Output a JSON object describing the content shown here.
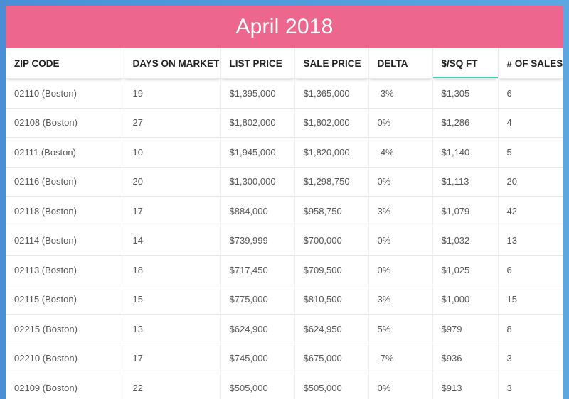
{
  "title": "April 2018",
  "colors": {
    "header_bg": "#ec668d",
    "sort_indicator": "#3cd3b5",
    "page_bg": "#4a8fd6"
  },
  "columns": [
    "ZIP CODE",
    "DAYS ON MARKET",
    "LIST PRICE",
    "SALE PRICE",
    "DELTA",
    "$/SQ FT",
    "# OF SALES"
  ],
  "sorted_column": "$/SQ FT",
  "rows": [
    [
      "02110 (Boston)",
      "19",
      "$1,395,000",
      "$1,365,000",
      "-3%",
      "$1,305",
      "6"
    ],
    [
      "02108 (Boston)",
      "27",
      "$1,802,000",
      "$1,802,000",
      "0%",
      "$1,286",
      "4"
    ],
    [
      "02111 (Boston)",
      "10",
      "$1,945,000",
      "$1,820,000",
      "-4%",
      "$1,140",
      "5"
    ],
    [
      "02116 (Boston)",
      "20",
      "$1,300,000",
      "$1,298,750",
      "0%",
      "$1,113",
      "20"
    ],
    [
      "02118 (Boston)",
      "17",
      "$884,000",
      "$958,750",
      "3%",
      "$1,079",
      "42"
    ],
    [
      "02114 (Boston)",
      "14",
      "$739,999",
      "$700,000",
      "0%",
      "$1,032",
      "13"
    ],
    [
      "02113 (Boston)",
      "18",
      "$717,450",
      "$709,500",
      "0%",
      "$1,025",
      "6"
    ],
    [
      "02115 (Boston)",
      "15",
      "$775,000",
      "$810,500",
      "3%",
      "$1,000",
      "15"
    ],
    [
      "02215 (Boston)",
      "13",
      "$624,900",
      "$624,950",
      "5%",
      "$979",
      "8"
    ],
    [
      "02210 (Boston)",
      "17",
      "$745,000",
      "$675,000",
      "-7%",
      "$936",
      "3"
    ],
    [
      "02109 (Boston)",
      "22",
      "$505,000",
      "$505,000",
      "0%",
      "$913",
      "3"
    ]
  ]
}
